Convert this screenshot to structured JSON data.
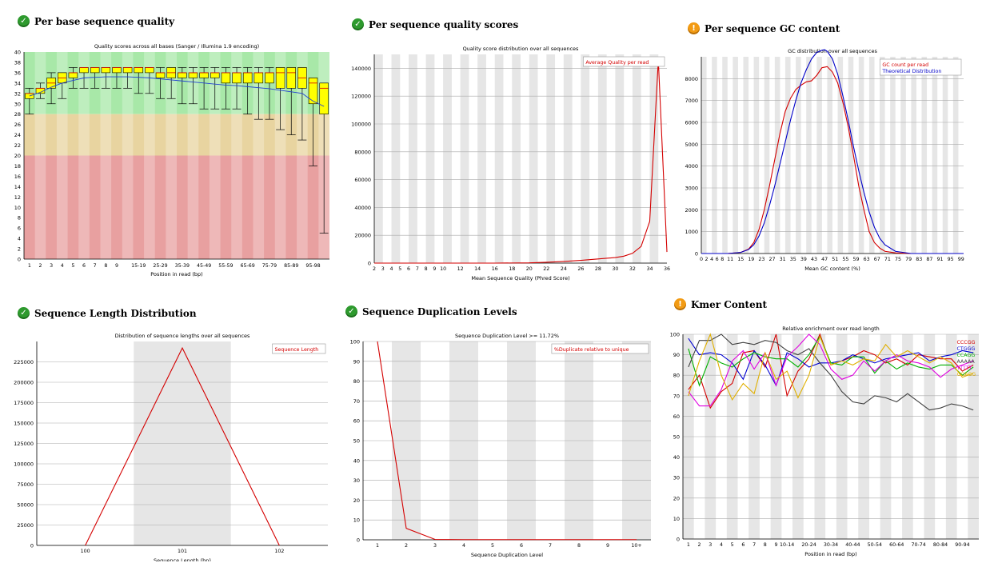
{
  "panels": {
    "base_quality": {
      "status": "pass",
      "status_icon": "check-icon",
      "title": "Per base sequence quality"
    },
    "seq_quality": {
      "status": "pass",
      "status_icon": "check-icon",
      "title": "Per sequence quality scores"
    },
    "gc_content": {
      "status": "warn",
      "status_icon": "exclamation-icon",
      "title": "Per sequence GC content"
    },
    "length_dist": {
      "status": "pass",
      "status_icon": "check-icon",
      "title": "Sequence Length Distribution"
    },
    "duplication": {
      "status": "pass",
      "status_icon": "check-icon",
      "title": "Sequence Duplication Levels"
    },
    "kmer": {
      "status": "warn",
      "status_icon": "exclamation-icon",
      "title": "Kmer Content"
    }
  },
  "status_glyphs": {
    "pass": "✓",
    "warn": "!"
  },
  "colors": {
    "pass": "#2e9a2e",
    "warn": "#f29b14",
    "red_line": "#d40000",
    "blue_line": "#0000c8",
    "box_fill": "#ffff00",
    "band_green": "#a8e8a8",
    "band_orange": "#e8d4a0",
    "band_red": "#e8a0a0",
    "stripe": "#e6e6e6"
  },
  "chart_data": [
    {
      "id": "base_quality",
      "type": "boxplot",
      "title": "Quality scores across all bases (Sanger / Illumina 1.9 encoding)",
      "xlabel": "Position in read (bp)",
      "ylabel": "",
      "ylim": [
        0,
        40
      ],
      "yticks": [
        0,
        2,
        4,
        6,
        8,
        10,
        12,
        14,
        16,
        18,
        20,
        22,
        24,
        26,
        28,
        30,
        32,
        34,
        36,
        38,
        40
      ],
      "bands": [
        {
          "from": 28,
          "to": 40,
          "color": "green"
        },
        {
          "from": 20,
          "to": 28,
          "color": "orange"
        },
        {
          "from": 0,
          "to": 20,
          "color": "red"
        }
      ],
      "categories": [
        "1",
        "2",
        "3",
        "4",
        "5",
        "6",
        "7",
        "8",
        "9",
        "10-14",
        "15-19",
        "20-24",
        "25-29",
        "30-34",
        "35-39",
        "40-44",
        "45-49",
        "50-54",
        "55-59",
        "60-64",
        "65-69",
        "70-74",
        "75-79",
        "80-84",
        "85-89",
        "90-94",
        "95-99",
        "100-101"
      ],
      "tick_labels": [
        "1",
        "2",
        "3",
        "4",
        "5",
        "6",
        "7",
        "8",
        "9",
        "15-19",
        "25-29",
        "35-39",
        "45-49",
        "55-59",
        "65-69",
        "75-79",
        "85-89",
        "95-98"
      ],
      "boxes": [
        {
          "low": 28,
          "q1": 31,
          "med": 32,
          "q3": 32,
          "high": 33
        },
        {
          "low": 31,
          "q1": 32,
          "med": 33,
          "q3": 33,
          "high": 34
        },
        {
          "low": 30,
          "q1": 33,
          "med": 34,
          "q3": 35,
          "high": 36
        },
        {
          "low": 31,
          "q1": 34,
          "med": 35,
          "q3": 36,
          "high": 36
        },
        {
          "low": 33,
          "q1": 35,
          "med": 36,
          "q3": 36,
          "high": 37
        },
        {
          "low": 33,
          "q1": 36,
          "med": 37,
          "q3": 37,
          "high": 37
        },
        {
          "low": 33,
          "q1": 36,
          "med": 37,
          "q3": 37,
          "high": 37
        },
        {
          "low": 33,
          "q1": 36,
          "med": 37,
          "q3": 37,
          "high": 37
        },
        {
          "low": 33,
          "q1": 36,
          "med": 37,
          "q3": 37,
          "high": 37
        },
        {
          "low": 33,
          "q1": 36,
          "med": 37,
          "q3": 37,
          "high": 37
        },
        {
          "low": 32,
          "q1": 36,
          "med": 37,
          "q3": 37,
          "high": 37
        },
        {
          "low": 32,
          "q1": 36,
          "med": 37,
          "q3": 37,
          "high": 37
        },
        {
          "low": 31,
          "q1": 35,
          "med": 36,
          "q3": 36,
          "high": 37
        },
        {
          "low": 31,
          "q1": 35,
          "med": 36,
          "q3": 37,
          "high": 37
        },
        {
          "low": 30,
          "q1": 35,
          "med": 36,
          "q3": 36,
          "high": 37
        },
        {
          "low": 30,
          "q1": 35,
          "med": 36,
          "q3": 36,
          "high": 37
        },
        {
          "low": 29,
          "q1": 35,
          "med": 36,
          "q3": 36,
          "high": 37
        },
        {
          "low": 29,
          "q1": 35,
          "med": 36,
          "q3": 36,
          "high": 37
        },
        {
          "low": 29,
          "q1": 34,
          "med": 36,
          "q3": 36,
          "high": 37
        },
        {
          "low": 29,
          "q1": 34,
          "med": 36,
          "q3": 36,
          "high": 37
        },
        {
          "low": 28,
          "q1": 34,
          "med": 36,
          "q3": 36,
          "high": 37
        },
        {
          "low": 27,
          "q1": 34,
          "med": 36,
          "q3": 36,
          "high": 37
        },
        {
          "low": 27,
          "q1": 34,
          "med": 36,
          "q3": 36,
          "high": 37
        },
        {
          "low": 25,
          "q1": 33,
          "med": 36,
          "q3": 37,
          "high": 37
        },
        {
          "low": 24,
          "q1": 33,
          "med": 36,
          "q3": 37,
          "high": 37
        },
        {
          "low": 23,
          "q1": 33,
          "med": 35,
          "q3": 37,
          "high": 37
        },
        {
          "low": 18,
          "q1": 30,
          "med": 34,
          "q3": 35,
          "high": 35
        },
        {
          "low": 5,
          "q1": 28,
          "med": 33,
          "q3": 34,
          "high": 34
        }
      ],
      "mean": [
        31.5,
        32.2,
        33.2,
        34.0,
        34.5,
        35.0,
        35.1,
        35.2,
        35.2,
        35.2,
        35.1,
        35.0,
        34.8,
        34.6,
        34.4,
        34.2,
        34.0,
        33.8,
        33.6,
        33.5,
        33.3,
        33.1,
        32.9,
        32.6,
        32.3,
        32.0,
        30.5,
        29.5
      ]
    },
    {
      "id": "seq_quality",
      "type": "line",
      "title": "Quality score distribution over all sequences",
      "xlabel": "Mean Sequence Quality (Phred Score)",
      "ylabel": "",
      "xlim": [
        2,
        36
      ],
      "ylim": [
        0,
        150000
      ],
      "xticks": [
        2,
        3,
        4,
        5,
        6,
        7,
        8,
        9,
        10,
        12,
        14,
        16,
        18,
        20,
        22,
        24,
        26,
        28,
        30,
        32,
        34,
        36
      ],
      "yticks": [
        0,
        20000,
        40000,
        60000,
        80000,
        100000,
        120000,
        140000
      ],
      "legend": "top-right",
      "series": [
        {
          "name": "Average Quality per read",
          "color": "red",
          "x": [
            2,
            10,
            16,
            20,
            22,
            24,
            26,
            28,
            30,
            31,
            32,
            33,
            34,
            35,
            36
          ],
          "y": [
            0,
            0,
            0,
            200,
            600,
            1200,
            2000,
            3000,
            4000,
            5000,
            7000,
            12000,
            30000,
            146000,
            8000
          ]
        }
      ]
    },
    {
      "id": "gc_content",
      "type": "line",
      "title": "GC distribution over all sequences",
      "xlabel": "Mean GC content (%)",
      "ylabel": "",
      "xlim": [
        0,
        100
      ],
      "ylim": [
        0,
        9000
      ],
      "xticks": [
        0,
        2,
        4,
        6,
        8,
        11,
        15,
        19,
        23,
        27,
        31,
        35,
        39,
        43,
        47,
        51,
        55,
        59,
        63,
        67,
        71,
        75,
        79,
        83,
        87,
        91,
        95,
        99
      ],
      "yticks": [
        0,
        1000,
        2000,
        3000,
        4000,
        5000,
        6000,
        7000,
        8000
      ],
      "legend": "top-right",
      "series": [
        {
          "name": "GC count per read",
          "color": "red",
          "x": [
            0,
            10,
            15,
            18,
            20,
            22,
            24,
            26,
            28,
            30,
            32,
            34,
            36,
            38,
            40,
            42,
            44,
            46,
            48,
            50,
            52,
            54,
            56,
            58,
            60,
            62,
            64,
            66,
            68,
            70,
            74,
            80,
            100
          ],
          "y": [
            0,
            0,
            50,
            200,
            500,
            1100,
            2000,
            3100,
            4300,
            5500,
            6500,
            7100,
            7500,
            7700,
            7850,
            7900,
            8150,
            8500,
            8550,
            8300,
            7800,
            6900,
            5800,
            4500,
            3100,
            2000,
            1000,
            500,
            250,
            100,
            30,
            0,
            0
          ]
        },
        {
          "name": "Theoretical Distribution",
          "color": "blue",
          "x": [
            0,
            10,
            15,
            18,
            20,
            22,
            24,
            26,
            28,
            30,
            32,
            34,
            36,
            38,
            40,
            42,
            44,
            46,
            47,
            48,
            50,
            52,
            54,
            56,
            58,
            60,
            62,
            64,
            66,
            68,
            70,
            74,
            80,
            100
          ],
          "y": [
            0,
            0,
            50,
            180,
            400,
            800,
            1400,
            2200,
            3100,
            4100,
            5100,
            6100,
            7000,
            7800,
            8400,
            8900,
            9200,
            9300,
            9320,
            9250,
            8900,
            8200,
            7200,
            6100,
            4900,
            3800,
            2800,
            1900,
            1200,
            700,
            400,
            100,
            0,
            0
          ]
        }
      ]
    },
    {
      "id": "length_dist",
      "type": "line",
      "title": "Distribution of sequence lengths over all sequences",
      "xlabel": "Sequence Length (bp)",
      "ylabel": "",
      "categories": [
        "100",
        "101",
        "102"
      ],
      "ylim": [
        0,
        250000
      ],
      "yticks": [
        0,
        25000,
        50000,
        75000,
        100000,
        125000,
        150000,
        175000,
        200000,
        225000
      ],
      "legend": "top-right",
      "series": [
        {
          "name": "Sequence Length",
          "color": "red",
          "values": [
            0,
            242000,
            0
          ]
        }
      ]
    },
    {
      "id": "duplication",
      "type": "line",
      "title": "Sequence Duplication Level >= 11.72%",
      "xlabel": "Sequence Duplication Level",
      "ylabel": "",
      "categories": [
        "1",
        "2",
        "3",
        "4",
        "5",
        "6",
        "7",
        "8",
        "9",
        "10+"
      ],
      "ylim": [
        0,
        100
      ],
      "yticks": [
        0,
        10,
        20,
        30,
        40,
        50,
        60,
        70,
        80,
        90,
        100
      ],
      "legend": "top-right",
      "series": [
        {
          "name": "%Duplicate relative to unique",
          "color": "red",
          "values": [
            100,
            5.8,
            0.2,
            0.1,
            0.1,
            0.1,
            0.1,
            0.1,
            0.1,
            0.1
          ]
        }
      ]
    },
    {
      "id": "kmer",
      "type": "line",
      "title": "Relative enrichment over read length",
      "xlabel": "Position in read (bp)",
      "ylabel": "",
      "categories": [
        "1",
        "2",
        "3",
        "4",
        "5",
        "6",
        "7",
        "8",
        "9",
        "10-14",
        "15-19",
        "20-24",
        "25-29",
        "30-34",
        "35-39",
        "40-44",
        "45-49",
        "50-54",
        "55-59",
        "60-64",
        "65-69",
        "70-74",
        "75-79",
        "80-84",
        "85-89",
        "90-94",
        "95-99"
      ],
      "tick_labels": [
        "1",
        "2",
        "3",
        "4",
        "5",
        "6",
        "7",
        "8",
        "9",
        "10-14",
        "20-24",
        "30-34",
        "40-44",
        "50-54",
        "60-64",
        "70-74",
        "80-84",
        "90-94"
      ],
      "ylim": [
        0,
        100
      ],
      "yticks": [
        0,
        10,
        20,
        30,
        40,
        50,
        60,
        70,
        80,
        90,
        100
      ],
      "legend": "top-right",
      "series": [
        {
          "name": "CCCGG",
          "color": "#d40000",
          "values": [
            73,
            80,
            64,
            72,
            76,
            91,
            92,
            84,
            100,
            70,
            82,
            88,
            100,
            85,
            87,
            89,
            92,
            90,
            86,
            88,
            85,
            90,
            89,
            88,
            88,
            82,
            85
          ]
        },
        {
          "name": "CTGGG",
          "color": "#0000d0",
          "values": [
            98,
            90,
            91,
            90,
            86,
            78,
            92,
            85,
            75,
            91,
            88,
            84,
            86,
            86,
            87,
            90,
            88,
            86,
            88,
            89,
            90,
            91,
            87,
            89,
            90,
            92,
            91
          ]
        },
        {
          "name": "CCAGG",
          "color": "#00b000",
          "values": [
            93,
            75,
            89,
            86,
            84,
            88,
            91,
            89,
            88,
            88,
            84,
            90,
            99,
            86,
            85,
            89,
            89,
            81,
            87,
            83,
            86,
            84,
            83,
            85,
            85,
            80,
            84
          ]
        },
        {
          "name": "AAAAA",
          "color": "#404040",
          "values": [
            84,
            97,
            97,
            100,
            95,
            96,
            95,
            97,
            96,
            92,
            90,
            93,
            86,
            80,
            72,
            67,
            66,
            70,
            69,
            67,
            71,
            67,
            63,
            64,
            66,
            65,
            63
          ]
        },
        {
          "name": "TTTTT",
          "color": "#e000e0",
          "values": [
            72,
            65,
            65,
            73,
            87,
            92,
            83,
            91,
            75,
            89,
            94,
            100,
            95,
            83,
            78,
            80,
            87,
            82,
            87,
            90,
            87,
            86,
            84,
            79,
            83,
            85,
            87
          ]
        },
        {
          "name": "GGAGG",
          "color": "#e0b000",
          "values": [
            70,
            87,
            100,
            80,
            68,
            76,
            71,
            91,
            78,
            82,
            69,
            80,
            99,
            85,
            87,
            85,
            88,
            87,
            95,
            89,
            92,
            89,
            86,
            89,
            86,
            79,
            81
          ]
        }
      ]
    }
  ]
}
